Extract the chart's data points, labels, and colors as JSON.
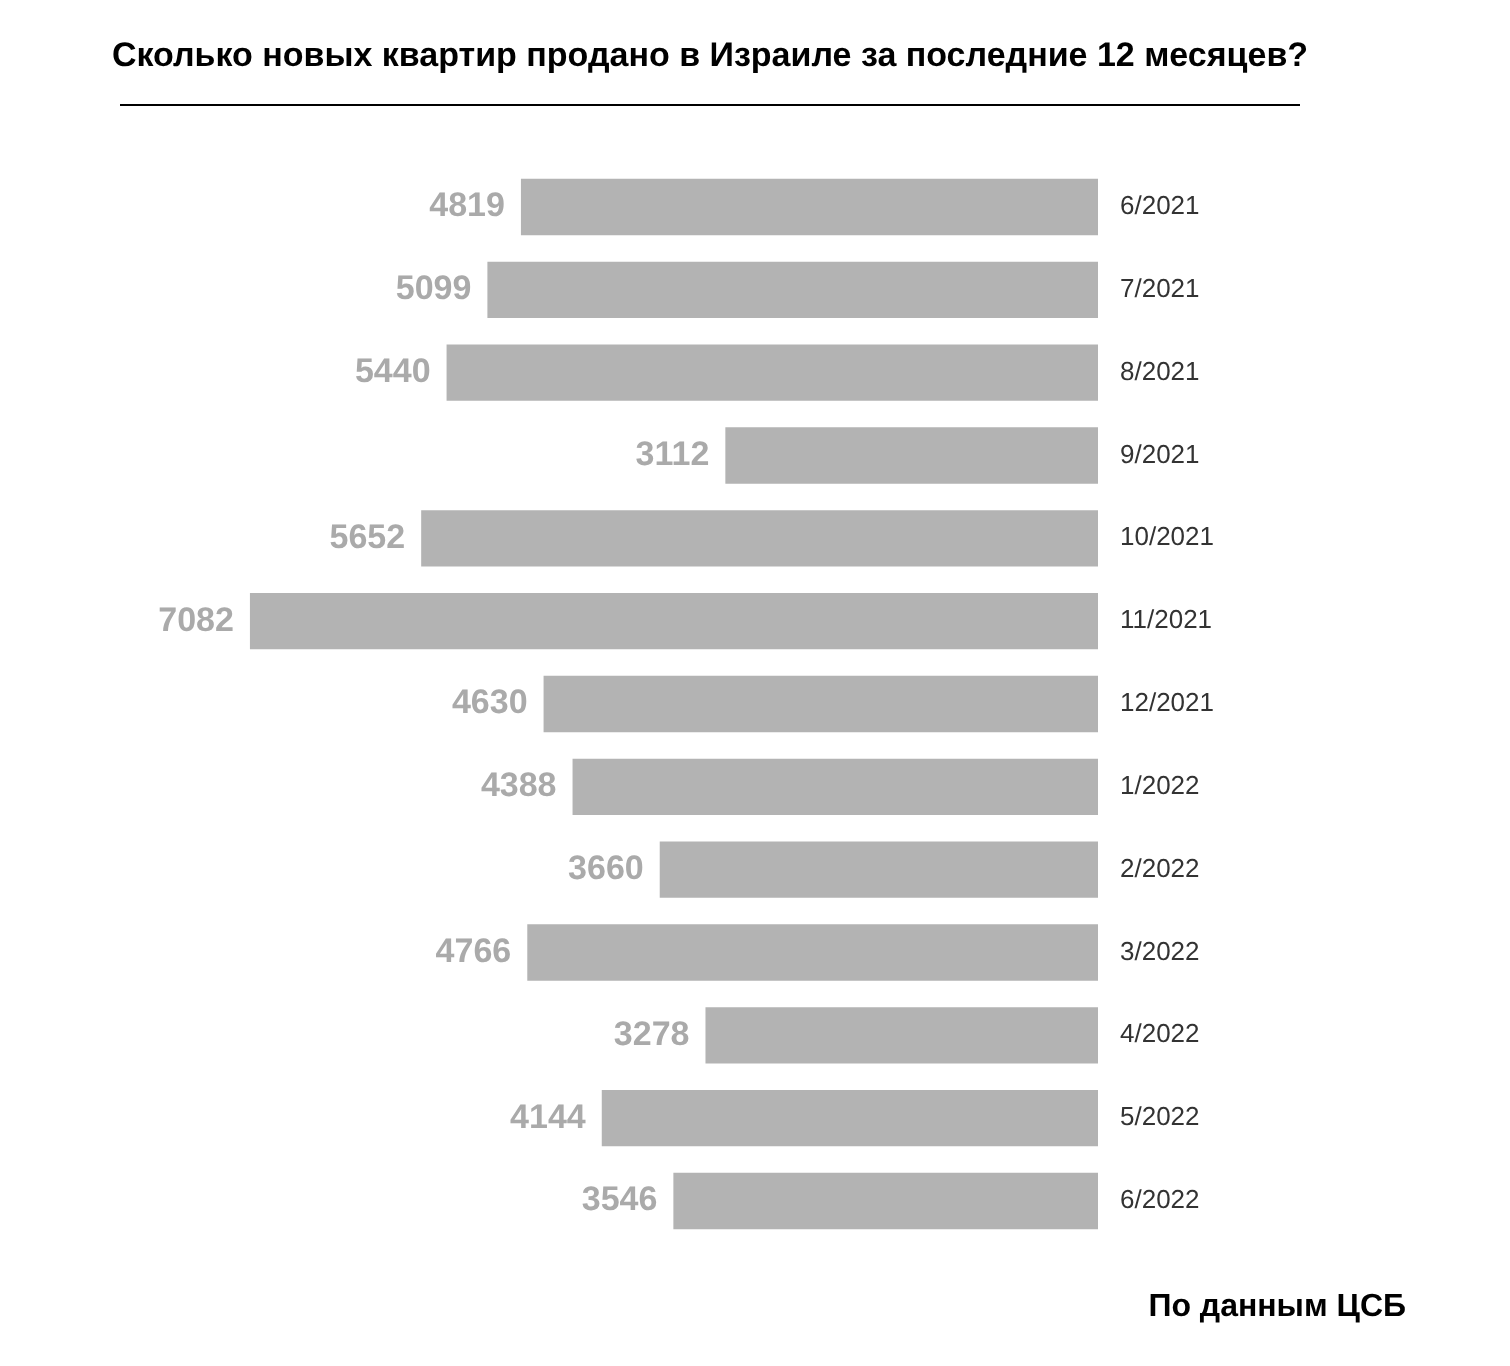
{
  "chart_data": {
    "type": "bar",
    "orientation": "horizontal",
    "title": "Сколько новых квартир продано в Израиле за последние 12 месяцев?",
    "categories": [
      "6/2021",
      "7/2021",
      "8/2021",
      "9/2021",
      "10/2021",
      "11/2021",
      "12/2021",
      "1/2022",
      "2/2022",
      "3/2022",
      "4/2022",
      "5/2022",
      "6/2022"
    ],
    "values": [
      4819,
      5099,
      5440,
      3112,
      5652,
      7082,
      4630,
      4388,
      3660,
      4766,
      3278,
      4144,
      3546
    ],
    "color": "#b3b3b3",
    "data_labels": true,
    "tick_labels": "y",
    "annotations": [
      "По данным ЦСБ"
    ]
  }
}
